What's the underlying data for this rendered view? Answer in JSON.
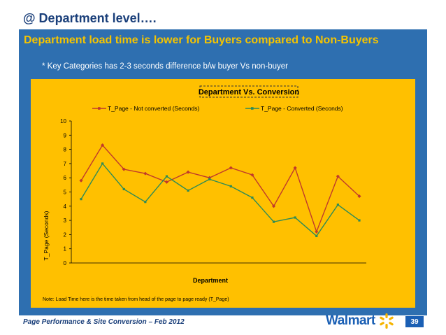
{
  "slide": {
    "title": "@ Department level….",
    "heading": "Department load time is lower for Buyers compared to Non-Buyers",
    "bullet": "* Key Categories has 2-3 seconds  difference b/w buyer Vs non-buyer",
    "footer": "Page Performance & Site Conversion – Feb 2012",
    "logo_text": "Walmart",
    "page_number": "39",
    "colors": {
      "brand_blue": "#1a5fb4",
      "banner_blue": "#2e6fb0",
      "accent_yellow": "#f5c400",
      "chart_bg": "#ffc000"
    },
    "logo_icon": "walmart-spark-icon"
  },
  "chart_data": {
    "type": "line",
    "title": "Department Vs. Conversion",
    "xlabel": "Department",
    "ylabel": "T_Page (Seconds)",
    "ylim": [
      0,
      10
    ],
    "yticks": [
      0,
      1,
      2,
      3,
      4,
      5,
      6,
      7,
      8,
      9,
      10
    ],
    "x": [
      1,
      2,
      3,
      4,
      5,
      6,
      7,
      8,
      9,
      10,
      11,
      12,
      13,
      14
    ],
    "legend_position": "top",
    "grid": false,
    "series": [
      {
        "name": "T_Page - Not converted (Seconds)",
        "color": "#c0392b",
        "values": [
          5.8,
          8.3,
          6.6,
          6.3,
          5.7,
          6.4,
          6.0,
          6.7,
          6.2,
          4.0,
          6.7,
          2.2,
          6.1,
          4.7
        ]
      },
      {
        "name": "T_Page - Converted (Seconds)",
        "color": "#2e8b57",
        "values": [
          4.5,
          7.0,
          5.2,
          4.3,
          6.1,
          5.1,
          5.9,
          5.4,
          4.6,
          2.9,
          3.2,
          1.9,
          4.1,
          3.0
        ]
      }
    ],
    "note": "Note: Load Time here is the time taken from head of the page to page ready (T_Page)"
  }
}
